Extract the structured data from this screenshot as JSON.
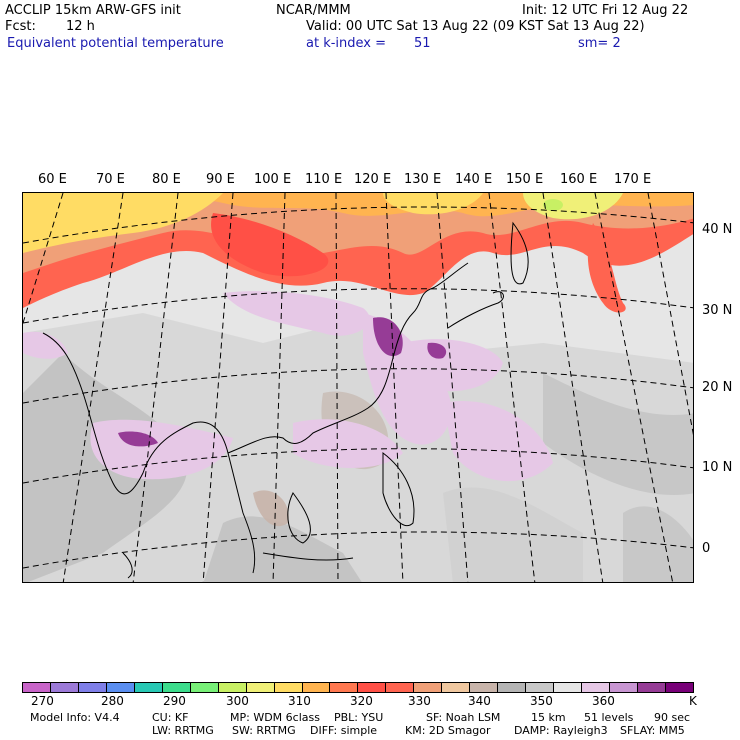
{
  "header": {
    "model_title": "ACCLIP 15km ARW-GFS init",
    "forecast_label": "Fcst:",
    "forecast_hours": "12 h",
    "field_name": "Equivalent potential temperature",
    "center": "NCAR/MMM",
    "init_time": "Init: 12 UTC Fri 12 Aug 22",
    "valid_time": "Valid: 00 UTC Sat 13 Aug 22 (09 KST Sat 13 Aug 22)",
    "level_label": "at k-index =",
    "level_value": "51",
    "smoothing": "sm= 2"
  },
  "map": {
    "lon_labels": [
      "60 E",
      "70 E",
      "80 E",
      "90 E",
      "100 E",
      "110 E",
      "120 E",
      "130 E",
      "140 E",
      "150 E",
      "160 E",
      "170 E"
    ],
    "lat_labels": [
      "40 N",
      "30 N",
      "20 N",
      "10 N",
      "0"
    ]
  },
  "colorbar": {
    "unit": "K",
    "tick_labels": [
      "270",
      "280",
      "290",
      "300",
      "310",
      "320",
      "330",
      "340",
      "350",
      "360"
    ],
    "colors": [
      "#c864c8",
      "#9c7ad8",
      "#7f7fe8",
      "#5a8ef0",
      "#28c8b4",
      "#3cdc8c",
      "#78f078",
      "#c8f064",
      "#f0f078",
      "#ffdc64",
      "#ffb450",
      "#ff7850",
      "#ff5046",
      "#ff6450",
      "#f0a078",
      "#f0c8a0",
      "#c8b4aa",
      "#b4b4b4",
      "#c8c8c8",
      "#e6e6e6",
      "#e6c8e6",
      "#c896d2",
      "#963c96",
      "#780078"
    ]
  },
  "footer": {
    "model_info": "Model Info: V4.4",
    "cu": "CU: KF",
    "mp": "MP: WDM 6class",
    "pbl": "PBL: YSU",
    "sf": "SF: Noah LSM",
    "res": "15 km",
    "levels": "51 levels",
    "dt": "90 sec",
    "lw": "LW: RRTMG",
    "sw": "SW: RRTMG",
    "diff": "DIFF: simple",
    "km": "KM: 2D Smagor",
    "damp": "DAMP: Rayleigh3",
    "sflay": "SFLAY: MM5"
  }
}
